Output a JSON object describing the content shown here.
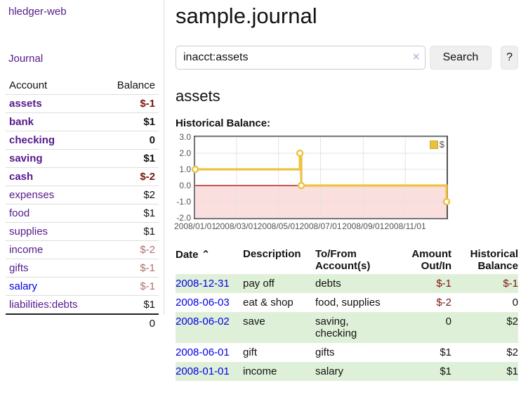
{
  "sidebar": {
    "brand": "hledger-web",
    "nav": [
      {
        "label": "Journal"
      }
    ],
    "accounts_table": {
      "headers": [
        "Account",
        "Balance"
      ],
      "rows": [
        {
          "account": "assets",
          "balance": "$-1",
          "level": 1,
          "bold": true,
          "balance_style": "neg-strong"
        },
        {
          "account": "bank",
          "balance": "$1",
          "level": 2,
          "bold": true,
          "balance_style": ""
        },
        {
          "account": "checking",
          "balance": "0",
          "level": 3,
          "bold": true,
          "balance_style": ""
        },
        {
          "account": "saving",
          "balance": "$1",
          "level": 3,
          "bold": true,
          "balance_style": ""
        },
        {
          "account": "cash",
          "balance": "$-2",
          "level": 2,
          "bold": true,
          "balance_style": "neg-strong"
        },
        {
          "account": "expenses",
          "balance": "$2",
          "level": 1,
          "bold": false,
          "balance_style": ""
        },
        {
          "account": "food",
          "balance": "$1",
          "level": 2,
          "bold": false,
          "balance_style": ""
        },
        {
          "account": "supplies",
          "balance": "$1",
          "level": 2,
          "bold": false,
          "balance_style": ""
        },
        {
          "account": "income",
          "balance": "$-2",
          "level": 1,
          "bold": false,
          "balance_style": "neg-soft"
        },
        {
          "account": "gifts",
          "balance": "$-1",
          "level": 2,
          "bold": false,
          "balance_style": "neg-soft"
        },
        {
          "account": "salary",
          "balance": "$-1",
          "level": 2,
          "bold": false,
          "balance_style": "neg-soft",
          "link_style": "blue"
        },
        {
          "account": "liabilities:debts",
          "balance": "$1",
          "level": 1,
          "bold": false,
          "balance_style": ""
        }
      ],
      "total": "0"
    }
  },
  "header": {
    "title": "sample.journal"
  },
  "search": {
    "value": "inacct:assets",
    "clear_icon": "×",
    "button_label": "Search",
    "help_label": "?"
  },
  "account_page": {
    "title": "assets",
    "chart_label": "Historical Balance:"
  },
  "chart_data": {
    "type": "line",
    "title": "Historical Balance:",
    "series": [
      {
        "name": "$",
        "color": "#edc240",
        "style": "step",
        "points": [
          [
            "2008-01-01",
            1
          ],
          [
            "2008-06-01",
            2
          ],
          [
            "2008-06-03",
            0
          ],
          [
            "2008-12-31",
            -1
          ]
        ]
      }
    ],
    "x_range": [
      "2008-01-01",
      "2008-12-31"
    ],
    "ylim": [
      -2,
      3
    ],
    "y_ticks": [
      "3.0",
      "2.0",
      "1.0",
      "0.0",
      "-1.0",
      "-2.0"
    ],
    "x_ticks": [
      "2008/01/01",
      "2008/03/01",
      "2008/05/01",
      "2008/07/01",
      "2008/09/01",
      "2008/11/01"
    ],
    "grid": true,
    "grid_color": "#e3e3e3",
    "zero_line_color": "#a40000",
    "negative_region_color": "#fbdede",
    "legend_position": "top-right"
  },
  "register_table": {
    "headers": {
      "date": "Date",
      "sort_icon": "⌃",
      "description": "Description",
      "accounts": "To/From Account(s)",
      "amount": "Amount Out/In",
      "balance": "Historical Balance"
    },
    "rows": [
      {
        "date": "2008-12-31",
        "description": "pay off",
        "accounts": "debts",
        "amount": "$-1",
        "amount_negative": true,
        "balance": "$-1",
        "balance_negative": true
      },
      {
        "date": "2008-06-03",
        "description": "eat & shop",
        "accounts": "food, supplies",
        "amount": "$-2",
        "amount_negative": true,
        "balance": "0",
        "balance_negative": false
      },
      {
        "date": "2008-06-02",
        "description": "save",
        "accounts": "saving, checking",
        "amount": "0",
        "amount_negative": false,
        "balance": "$2",
        "balance_negative": false
      },
      {
        "date": "2008-06-01",
        "description": "gift",
        "accounts": "gifts",
        "amount": "$1",
        "amount_negative": false,
        "balance": "$2",
        "balance_negative": false
      },
      {
        "date": "2008-01-01",
        "description": "income",
        "accounts": "salary",
        "amount": "$1",
        "amount_negative": false,
        "balance": "$1",
        "balance_negative": false
      }
    ]
  }
}
